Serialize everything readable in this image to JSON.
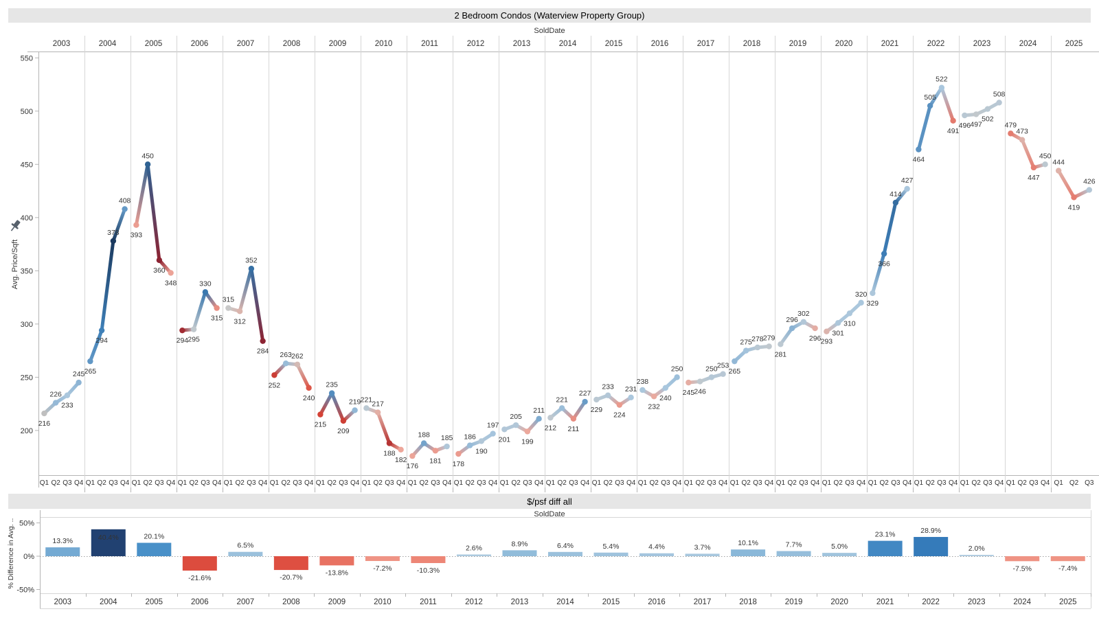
{
  "top_chart": {
    "title": "2 Bedroom Condos (Waterview Property Group)",
    "x_axis_title": "SoldDate",
    "y_axis_title": "Avg. Price/Sqft",
    "y_ticks": [
      550,
      500,
      450,
      400,
      350,
      300,
      250,
      200
    ],
    "quarter_labels": [
      "Q1",
      "Q2",
      "Q3",
      "Q4"
    ],
    "pin_icon": "pushpin-icon"
  },
  "bottom_chart": {
    "title": "$/psf diff all",
    "x_axis_title": "SoldDate",
    "y_axis_title": "% Difference in Avg. ..",
    "y_tick_labels": [
      "50%",
      "0%",
      "-50%"
    ],
    "y_tick_values": [
      50,
      0,
      -50
    ]
  },
  "colors": {
    "band_background": "#e6e6e6",
    "axis_line": "#b4b4b4",
    "separator_line": "#d6d6d6",
    "zero_line": "#a0a0a0",
    "neutral_point": "#bfbfbf",
    "strong_blue": "#1b3a5f",
    "mid_blue": "#3e7fb8",
    "light_blue": "#a9c7de",
    "strong_red": "#8c2332",
    "mid_red": "#d94436",
    "light_red": "#eda79b",
    "bar_dark_blue": "#1f3864",
    "bar_mid_blue": "#2e75b6",
    "bar_red": "#cf2e28"
  },
  "chart_data": [
    {
      "type": "line",
      "title": "2 Bedroom Condos (Waterview Property Group)",
      "xlabel": "SoldDate",
      "ylabel": "Avg. Price/Sqft",
      "ylim": [
        158,
        556
      ],
      "y_ticks": [
        550,
        500,
        450,
        400,
        350,
        300,
        250,
        200
      ],
      "x_structure": "years split into quarters Q1-Q4 (2025 has Q1-Q3 only)",
      "color_encoding": "quarter-over-quarter change: blue = increase, red = decrease, darker = larger change",
      "series": [
        {
          "year": "2003",
          "quarters": [
            "Q1",
            "Q2",
            "Q3",
            "Q4"
          ],
          "values": [
            216,
            226,
            233,
            245
          ]
        },
        {
          "year": "2004",
          "quarters": [
            "Q1",
            "Q2",
            "Q3",
            "Q4"
          ],
          "values": [
            265,
            294,
            378,
            408
          ]
        },
        {
          "year": "2005",
          "quarters": [
            "Q1",
            "Q2",
            "Q3",
            "Q4"
          ],
          "values": [
            393,
            450,
            360,
            348
          ]
        },
        {
          "year": "2006",
          "quarters": [
            "Q1",
            "Q2",
            "Q3",
            "Q4"
          ],
          "values": [
            294,
            295,
            330,
            315
          ]
        },
        {
          "year": "2007",
          "quarters": [
            "Q1",
            "Q2",
            "Q3",
            "Q4"
          ],
          "values": [
            315,
            312,
            352,
            284
          ]
        },
        {
          "year": "2008",
          "quarters": [
            "Q1",
            "Q2",
            "Q3",
            "Q4"
          ],
          "values": [
            252,
            263,
            262,
            240
          ]
        },
        {
          "year": "2009",
          "quarters": [
            "Q1",
            "Q2",
            "Q3",
            "Q4"
          ],
          "values": [
            215,
            235,
            209,
            219
          ]
        },
        {
          "year": "2010",
          "quarters": [
            "Q1",
            "Q2",
            "Q3",
            "Q4"
          ],
          "values": [
            221,
            217,
            188,
            182
          ]
        },
        {
          "year": "2011",
          "quarters": [
            "Q1",
            "Q2",
            "Q3",
            "Q4"
          ],
          "values": [
            176,
            188,
            181,
            185
          ]
        },
        {
          "year": "2012",
          "quarters": [
            "Q1",
            "Q2",
            "Q3",
            "Q4"
          ],
          "values": [
            178,
            186,
            190,
            197
          ]
        },
        {
          "year": "2013",
          "quarters": [
            "Q1",
            "Q2",
            "Q3",
            "Q4"
          ],
          "values": [
            201,
            205,
            199,
            211
          ]
        },
        {
          "year": "2014",
          "quarters": [
            "Q1",
            "Q2",
            "Q3",
            "Q4"
          ],
          "values": [
            212,
            221,
            211,
            227
          ]
        },
        {
          "year": "2015",
          "quarters": [
            "Q1",
            "Q2",
            "Q3",
            "Q4"
          ],
          "values": [
            229,
            233,
            224,
            231
          ]
        },
        {
          "year": "2016",
          "quarters": [
            "Q1",
            "Q2",
            "Q3",
            "Q4"
          ],
          "values": [
            238,
            232,
            240,
            250
          ]
        },
        {
          "year": "2017",
          "quarters": [
            "Q1",
            "Q2",
            "Q3",
            "Q4"
          ],
          "values": [
            245,
            246,
            250,
            253
          ]
        },
        {
          "year": "2018",
          "quarters": [
            "Q1",
            "Q2",
            "Q3",
            "Q4"
          ],
          "values": [
            265,
            275,
            278,
            279
          ]
        },
        {
          "year": "2019",
          "quarters": [
            "Q1",
            "Q2",
            "Q3",
            "Q4"
          ],
          "values": [
            281,
            296,
            302,
            296
          ]
        },
        {
          "year": "2020",
          "quarters": [
            "Q1",
            "Q2",
            "Q3",
            "Q4"
          ],
          "values": [
            293,
            301,
            310,
            320
          ]
        },
        {
          "year": "2021",
          "quarters": [
            "Q1",
            "Q2",
            "Q3",
            "Q4"
          ],
          "values": [
            329,
            366,
            414,
            427
          ]
        },
        {
          "year": "2022",
          "quarters": [
            "Q1",
            "Q2",
            "Q3",
            "Q4"
          ],
          "values": [
            464,
            505,
            522,
            491
          ]
        },
        {
          "year": "2023",
          "quarters": [
            "Q1",
            "Q2",
            "Q3",
            "Q4"
          ],
          "values": [
            496,
            497,
            502,
            508
          ]
        },
        {
          "year": "2024",
          "quarters": [
            "Q1",
            "Q2",
            "Q3",
            "Q4"
          ],
          "values": [
            479,
            473,
            447,
            450
          ]
        },
        {
          "year": "2025",
          "quarters": [
            "Q1",
            "Q2",
            "Q3"
          ],
          "values": [
            444,
            419,
            426
          ]
        }
      ]
    },
    {
      "type": "bar",
      "title": "$/psf diff all",
      "xlabel": "SoldDate",
      "ylabel": "% Difference in Avg. ..",
      "ylim": [
        -50,
        50
      ],
      "value_format": "percent",
      "categories": [
        "2003",
        "2004",
        "2005",
        "2006",
        "2007",
        "2008",
        "2009",
        "2010",
        "2011",
        "2012",
        "2013",
        "2014",
        "2015",
        "2016",
        "2017",
        "2018",
        "2019",
        "2020",
        "2021",
        "2022",
        "2023",
        "2024",
        "2025"
      ],
      "values": [
        13.3,
        40.4,
        20.1,
        -21.6,
        6.5,
        -20.7,
        -13.8,
        -7.2,
        -10.3,
        2.6,
        8.9,
        6.4,
        5.4,
        4.4,
        3.7,
        10.1,
        7.7,
        5.0,
        23.1,
        28.9,
        2.0,
        -7.5,
        -7.4
      ]
    }
  ]
}
